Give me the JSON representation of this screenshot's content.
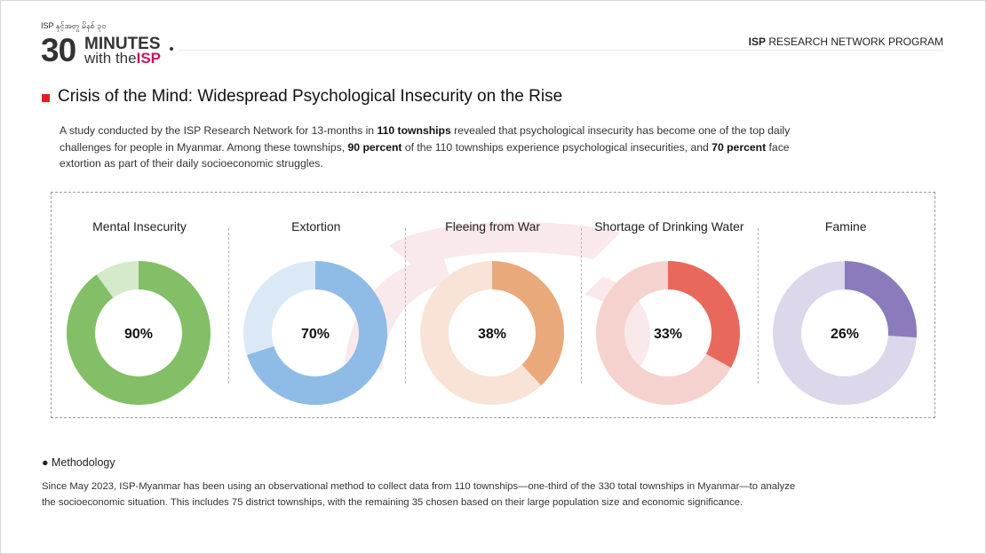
{
  "header": {
    "logo_small": "ISP နှင့်အတူ မိနစ် ၃၀",
    "logo_number": "30",
    "logo_minutes": "MINUTES",
    "logo_with": "with the",
    "logo_isp": "ISP",
    "program_bold": "ISP",
    "program_rest": " RESEARCH NETWORK PROGRAM"
  },
  "title": "Crisis of the Mind: Widespread Psychological Insecurity on the Rise",
  "intro": {
    "p1": "A study conducted by the ISP Research Network for 13-months in ",
    "b1": "110 townships",
    "p2": " revealed that psychological insecurity has become one of the top daily challenges for people in Myanmar. Among these townships, ",
    "b2": "90 percent",
    "p3": " of the 110 townships experience psychological insecurities, and ",
    "b3": "70 percent",
    "p4": " face extortion as part of their daily socioeconomic struggles."
  },
  "chart_data": {
    "type": "pie",
    "subtype": "donut",
    "unit": "%",
    "categories": [
      "Mental Insecurity",
      "Extortion",
      "Fleeing from War",
      "Shortage of Drinking Water",
      "Famine"
    ],
    "values": [
      90,
      70,
      38,
      33,
      26
    ],
    "labels": [
      "90%",
      "70%",
      "38%",
      "33%",
      "26%"
    ],
    "colors": [
      "#82bf66",
      "#8fbbe7",
      "#e9a97a",
      "#e8695c",
      "#8b7bbd"
    ],
    "track_colors": [
      "#d5eacb",
      "#dbe9f7",
      "#f9e3d6",
      "#f6d2cf",
      "#dcd7ea"
    ]
  },
  "methodology": {
    "heading": "● Methodology",
    "text": "Since May 2023, ISP-Myanmar has been using an observational method to collect data from 110 townships—one-third of the 330 total townships in Myanmar—to analyze the socioeconomic situation. This includes 75 district townships, with the remaining 35 chosen based on their large population size and economic significance."
  }
}
